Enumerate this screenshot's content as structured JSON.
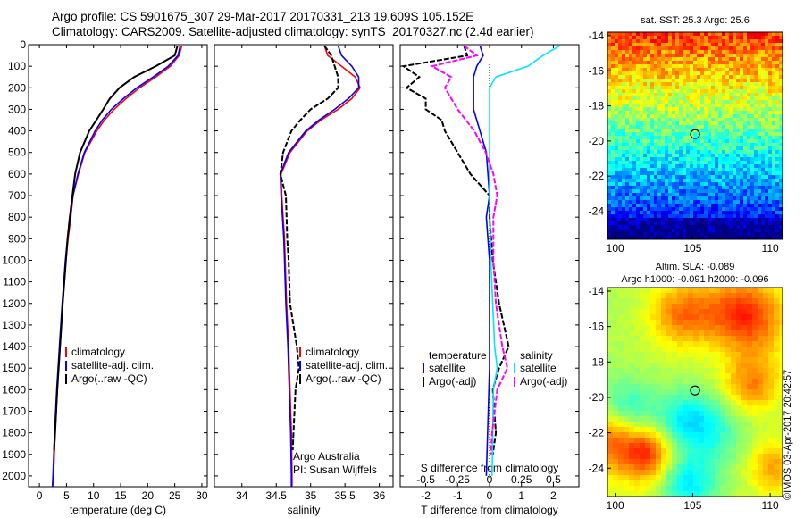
{
  "header": {
    "line1": "Argo profile: CS 5901675_307 29-Mar-2017 20170331_213 19.609S 105.152E",
    "line2": "Climatology: CARS2009. Satellite-adjusted climatology: synTS_20170327.nc (2.4d earlier)"
  },
  "watermark": "©IMOS 03-Apr-2017 20:42:57",
  "depth_ticks": [
    "0",
    "100",
    "200",
    "300",
    "400",
    "500",
    "600",
    "700",
    "800",
    "900",
    "1000",
    "1100",
    "1200",
    "1300",
    "1400",
    "1500",
    "1600",
    "1700",
    "1800",
    "1900",
    "2000"
  ],
  "colors": {
    "climatology": "#ff0000",
    "satellite": "#0000ff",
    "argo": "#000000",
    "magenta": "#ff00ff",
    "cyan": "#00e5ff"
  },
  "chart_data": [
    {
      "type": "line",
      "xlabel": "temperature (deg C)",
      "xlim": [
        -2,
        31
      ],
      "xticks": [
        0,
        5,
        10,
        15,
        20,
        25,
        30
      ],
      "ylim": [
        0,
        2050
      ],
      "legend": [
        "climatology",
        "satellite-adj. clim.",
        "Argo(..raw -QC)"
      ],
      "series": [
        {
          "name": "climatology",
          "color": "#ff0000",
          "depth": [
            5,
            50,
            100,
            150,
            200,
            250,
            300,
            350,
            400,
            500,
            600,
            700,
            800,
            900,
            1000,
            1200,
            1400,
            1600,
            1800,
            2000,
            2050
          ],
          "values": [
            26.3,
            25.8,
            24.2,
            21.5,
            18.5,
            16,
            13.8,
            12,
            10.6,
            8.4,
            7.2,
            6.2,
            5.8,
            5.3,
            4.9,
            4.3,
            3.8,
            3.3,
            2.9,
            2.6,
            2.5
          ]
        },
        {
          "name": "satellite-adj. clim.",
          "color": "#0000ff",
          "depth": [
            5,
            50,
            100,
            150,
            200,
            250,
            300,
            350,
            400,
            500,
            600,
            700,
            800,
            900,
            1000,
            1200,
            1400,
            1600,
            1800,
            2000,
            2050
          ],
          "values": [
            26,
            25.6,
            23.8,
            21,
            18,
            15.5,
            13.3,
            11.6,
            10.3,
            8.3,
            7.1,
            6.2,
            5.7,
            5.2,
            4.8,
            4.2,
            3.7,
            3.2,
            2.8,
            2.5,
            2.4
          ]
        },
        {
          "name": "Argo(..raw -QC)",
          "color": "#000000",
          "depth": [
            5,
            50,
            100,
            150,
            200,
            250,
            300,
            350,
            400,
            500,
            600,
            700,
            800,
            900,
            1000,
            1200,
            1400,
            1600,
            1800,
            1880
          ],
          "values": [
            25.5,
            25,
            21.5,
            17.5,
            14.8,
            13,
            11.8,
            10.5,
            9.2,
            7.5,
            6.6,
            6.1,
            5.6,
            5.2,
            4.9,
            4.3,
            3.8,
            3.3,
            2.9,
            2.7
          ]
        }
      ]
    },
    {
      "type": "line",
      "xlabel": "salinity",
      "xlim": [
        33.6,
        36.2
      ],
      "xticks": [
        34,
        34.5,
        35,
        35.5,
        36
      ],
      "ylim": [
        0,
        2050
      ],
      "legend": [
        "climatology",
        "satellite-adj. clim.",
        "Argo(..raw -QC)"
      ],
      "annotations": [
        "Argo Australia",
        "PI: Susan Wijffels"
      ],
      "series": [
        {
          "name": "climatology",
          "color": "#ff0000",
          "depth": [
            5,
            50,
            100,
            150,
            200,
            250,
            300,
            350,
            400,
            500,
            600,
            700,
            800,
            900,
            1000,
            1200,
            1400,
            1600,
            1800,
            2000,
            2050
          ],
          "values": [
            35.2,
            35.25,
            35.45,
            35.65,
            35.72,
            35.6,
            35.4,
            35.15,
            34.95,
            34.7,
            34.57,
            34.58,
            34.6,
            34.62,
            34.63,
            34.65,
            34.68,
            34.7,
            34.72,
            34.73,
            34.73
          ]
        },
        {
          "name": "satellite-adj. clim.",
          "color": "#0000ff",
          "depth": [
            5,
            50,
            100,
            150,
            200,
            250,
            300,
            350,
            400,
            500,
            600,
            700,
            800,
            900,
            1000,
            1200,
            1400,
            1600,
            1800,
            2000,
            2050
          ],
          "values": [
            35.4,
            35.45,
            35.6,
            35.7,
            35.7,
            35.55,
            35.35,
            35.12,
            34.93,
            34.68,
            34.56,
            34.57,
            34.59,
            34.61,
            34.62,
            34.64,
            34.67,
            34.69,
            34.71,
            34.72,
            34.72
          ]
        },
        {
          "name": "Argo(..raw -QC)",
          "color": "#000000",
          "depth": [
            5,
            50,
            100,
            150,
            200,
            250,
            300,
            350,
            400,
            500,
            600,
            700,
            800,
            900,
            1000,
            1200,
            1400,
            1500,
            1600,
            1800,
            1880
          ],
          "values": [
            35.2,
            35.3,
            35.35,
            35.4,
            35.4,
            35.25,
            35.0,
            34.85,
            34.72,
            34.6,
            34.56,
            34.64,
            34.65,
            34.66,
            34.68,
            34.7,
            34.8,
            34.83,
            34.78,
            34.75,
            34.74
          ]
        }
      ]
    },
    {
      "type": "line",
      "xlabel": "T difference from climatology",
      "x2label": "S difference from climatology",
      "xlim": [
        -2.8,
        2.8
      ],
      "xticks": [
        -2,
        -1,
        0,
        1,
        2
      ],
      "x2ticks": [
        -0.5,
        -0.25,
        0,
        0.25,
        0.5
      ],
      "x2ticklabels": [
        "-0.5",
        "-0.25",
        "0",
        "0.25",
        "0.5"
      ],
      "ylim": [
        0,
        2050
      ],
      "legend_left_title": "temperature",
      "legend_right_title": "salinity",
      "legend_left": [
        "satellite",
        "Argo(-adj)"
      ],
      "legend_right": [
        "satellite",
        "Argo(-adj)"
      ],
      "series": [
        {
          "name": "satellite",
          "kind": "T",
          "color": "#0000ff",
          "depth": [
            5,
            50,
            100,
            150,
            200,
            300,
            500,
            700,
            800,
            1000,
            1500,
            2000
          ],
          "values": [
            -0.3,
            -0.2,
            -0.4,
            -0.5,
            -0.5,
            -0.5,
            -0.1,
            0,
            -0.1,
            0,
            0,
            -0.1
          ]
        },
        {
          "name": "Argo(-adj)",
          "kind": "T",
          "color": "#000000",
          "depth": [
            5,
            50,
            100,
            150,
            200,
            250,
            300,
            350,
            400,
            500,
            600,
            700,
            800,
            1000,
            1200,
            1400,
            1500,
            1600,
            1800,
            1900
          ],
          "values": [
            -0.8,
            -0.7,
            -2.7,
            -2.2,
            -2.6,
            -2.0,
            -2.0,
            -1.5,
            -1.4,
            -1.0,
            -0.6,
            0,
            0,
            0.1,
            0.3,
            0.6,
            0.3,
            0.1,
            0.2,
            0.1
          ]
        },
        {
          "name": "satellite",
          "kind": "S",
          "color": "#00e5ff",
          "depth": [
            5,
            50,
            100,
            150,
            200,
            300,
            400,
            500,
            700,
            1000,
            1400,
            1500,
            1600,
            2000
          ],
          "values": [
            0.55,
            0.42,
            0.3,
            0.05,
            0,
            0,
            0,
            0,
            0,
            0.01,
            0.04,
            0.06,
            0.03,
            0.02
          ]
        },
        {
          "name": "Argo(-adj)",
          "kind": "S",
          "color": "#ff00ff",
          "depth": [
            5,
            50,
            100,
            150,
            200,
            300,
            400,
            500,
            600,
            700,
            800,
            900,
            1000,
            1200,
            1400,
            1500,
            1600,
            1800,
            1900
          ],
          "values": [
            -0.2,
            -0.1,
            -0.45,
            -0.3,
            -0.35,
            -0.25,
            -0.12,
            -0.03,
            0.03,
            0.06,
            0.03,
            0.03,
            0.03,
            0.05,
            0.1,
            0.14,
            0.06,
            0.02,
            0.01
          ]
        }
      ]
    },
    {
      "type": "heatmap",
      "title": "sat. SST: 25.3 Argo: 25.6",
      "xlim": [
        99.5,
        110.8
      ],
      "ylim": [
        -25.6,
        -13.8
      ],
      "xticks": [
        100,
        105,
        110
      ],
      "yticks": [
        -14,
        -16,
        -18,
        -20,
        -22,
        -24
      ],
      "marker": {
        "x": 105.152,
        "y": -19.609
      }
    },
    {
      "type": "heatmap",
      "title": "Altim. SLA: -0.089",
      "subtitle": "Argo h1000: -0.091 h2000: -0.096",
      "xlim": [
        99.5,
        110.8
      ],
      "ylim": [
        -25.6,
        -13.8
      ],
      "xticks": [
        100,
        105,
        110
      ],
      "yticks": [
        -14,
        -16,
        -18,
        -20,
        -22,
        -24
      ],
      "marker": {
        "x": 105.152,
        "y": -19.609
      }
    }
  ]
}
